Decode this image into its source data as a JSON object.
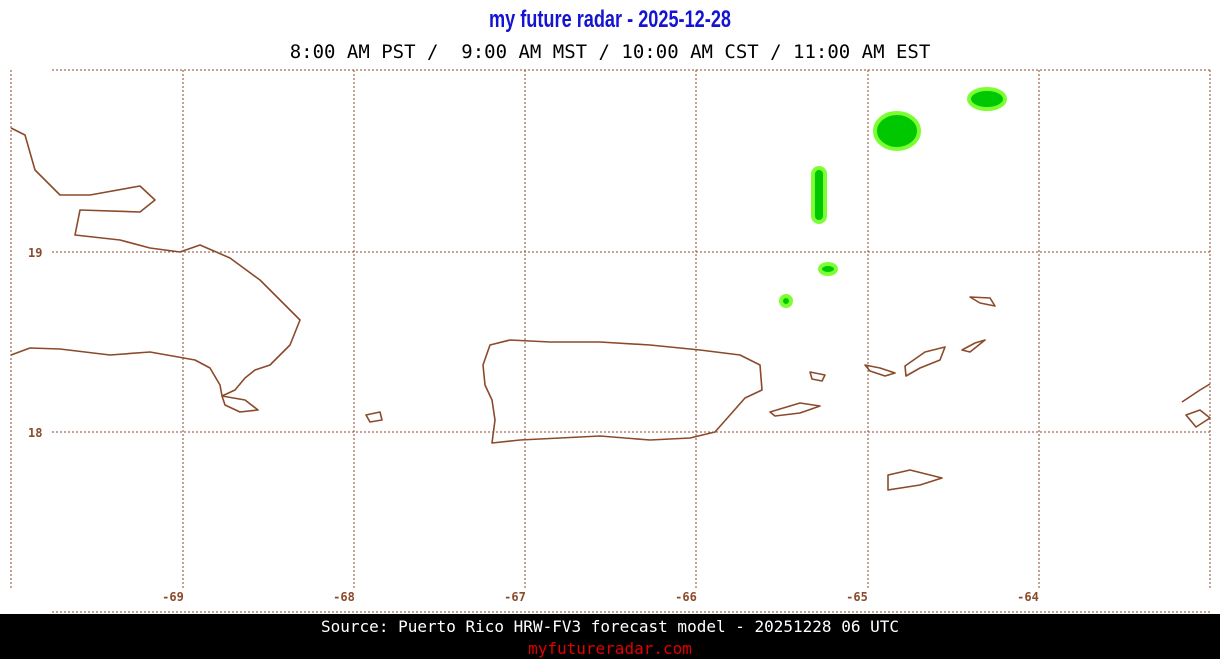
{
  "header": {
    "title": "my future radar - 2025-12-28",
    "subtitle": "8:00 AM PST /  9:00 AM MST / 10:00 AM CST / 11:00 AM EST"
  },
  "map": {
    "lat_labels": [
      "19",
      "18"
    ],
    "lon_labels": [
      "-69",
      "-68",
      "-67",
      "-66",
      "-65",
      "-64"
    ]
  },
  "footer": {
    "source": "Source: Puerto Rico HRW-FV3 forecast model - 20251228 06 UTC",
    "site": "myfutureradar.com"
  }
}
